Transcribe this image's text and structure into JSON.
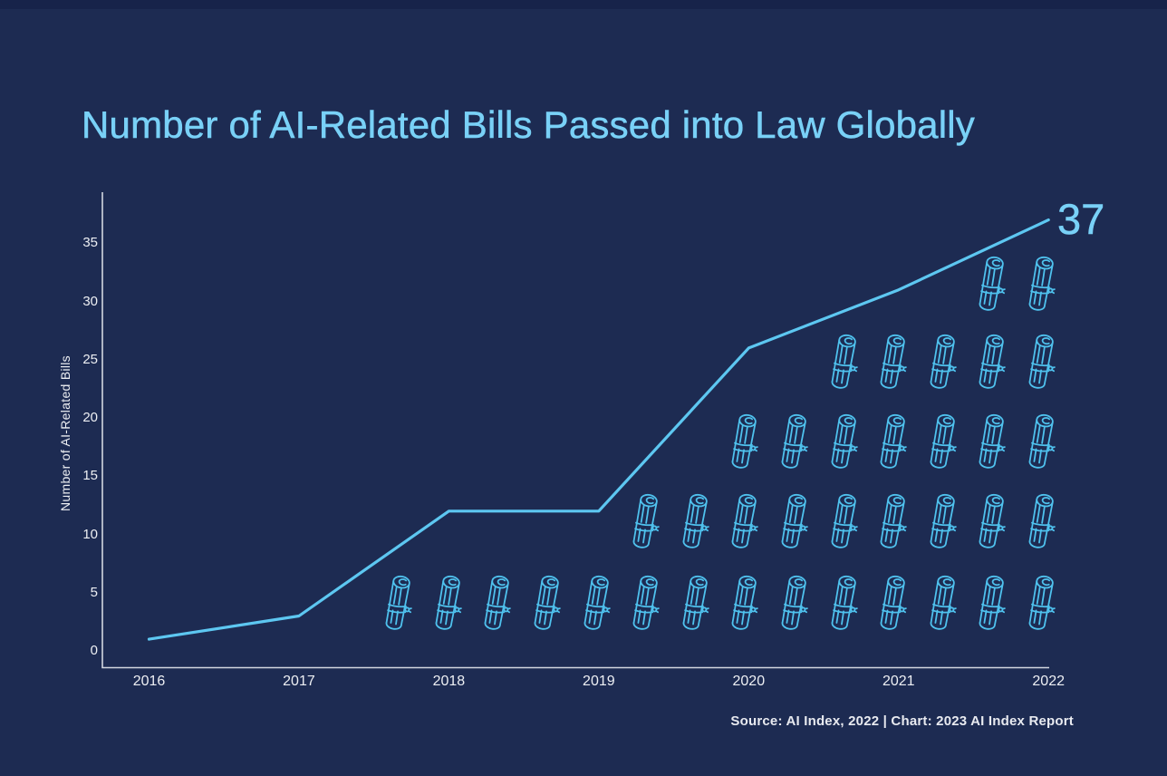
{
  "title": "Number of AI-Related Bills Passed into Law Globally",
  "source": "Source: AI Index, 2022 | Chart: 2023 AI Index Report",
  "colors": {
    "background": "#1d2b52",
    "top_strip": "#17234a",
    "title_text": "#79d1f7",
    "line": "#5dc7f1",
    "icon_outline": "#4fc2ee",
    "axis_line": "#d3d7e0",
    "tick_text": "#edeff3",
    "source_text": "#e8eaf0"
  },
  "chart_data": {
    "type": "line",
    "title": "Number of AI-Related Bills Passed into Law Globally",
    "x": [
      2016,
      2017,
      2018,
      2019,
      2020,
      2021,
      2022
    ],
    "values": [
      1,
      3,
      12,
      12,
      26,
      31,
      37
    ],
    "xlabel": "",
    "ylabel": "Number of AI-Related Bills",
    "ylim": [
      0,
      38
    ],
    "yticks": [
      0,
      5,
      10,
      15,
      20,
      25,
      30,
      35
    ],
    "grid": false,
    "legend": "none",
    "end_label": "37",
    "pictogram": {
      "icon": "paper-scroll-bill",
      "total_icons": 37,
      "rows_bottom_to_top": [
        14,
        9,
        7,
        5,
        2
      ]
    }
  }
}
